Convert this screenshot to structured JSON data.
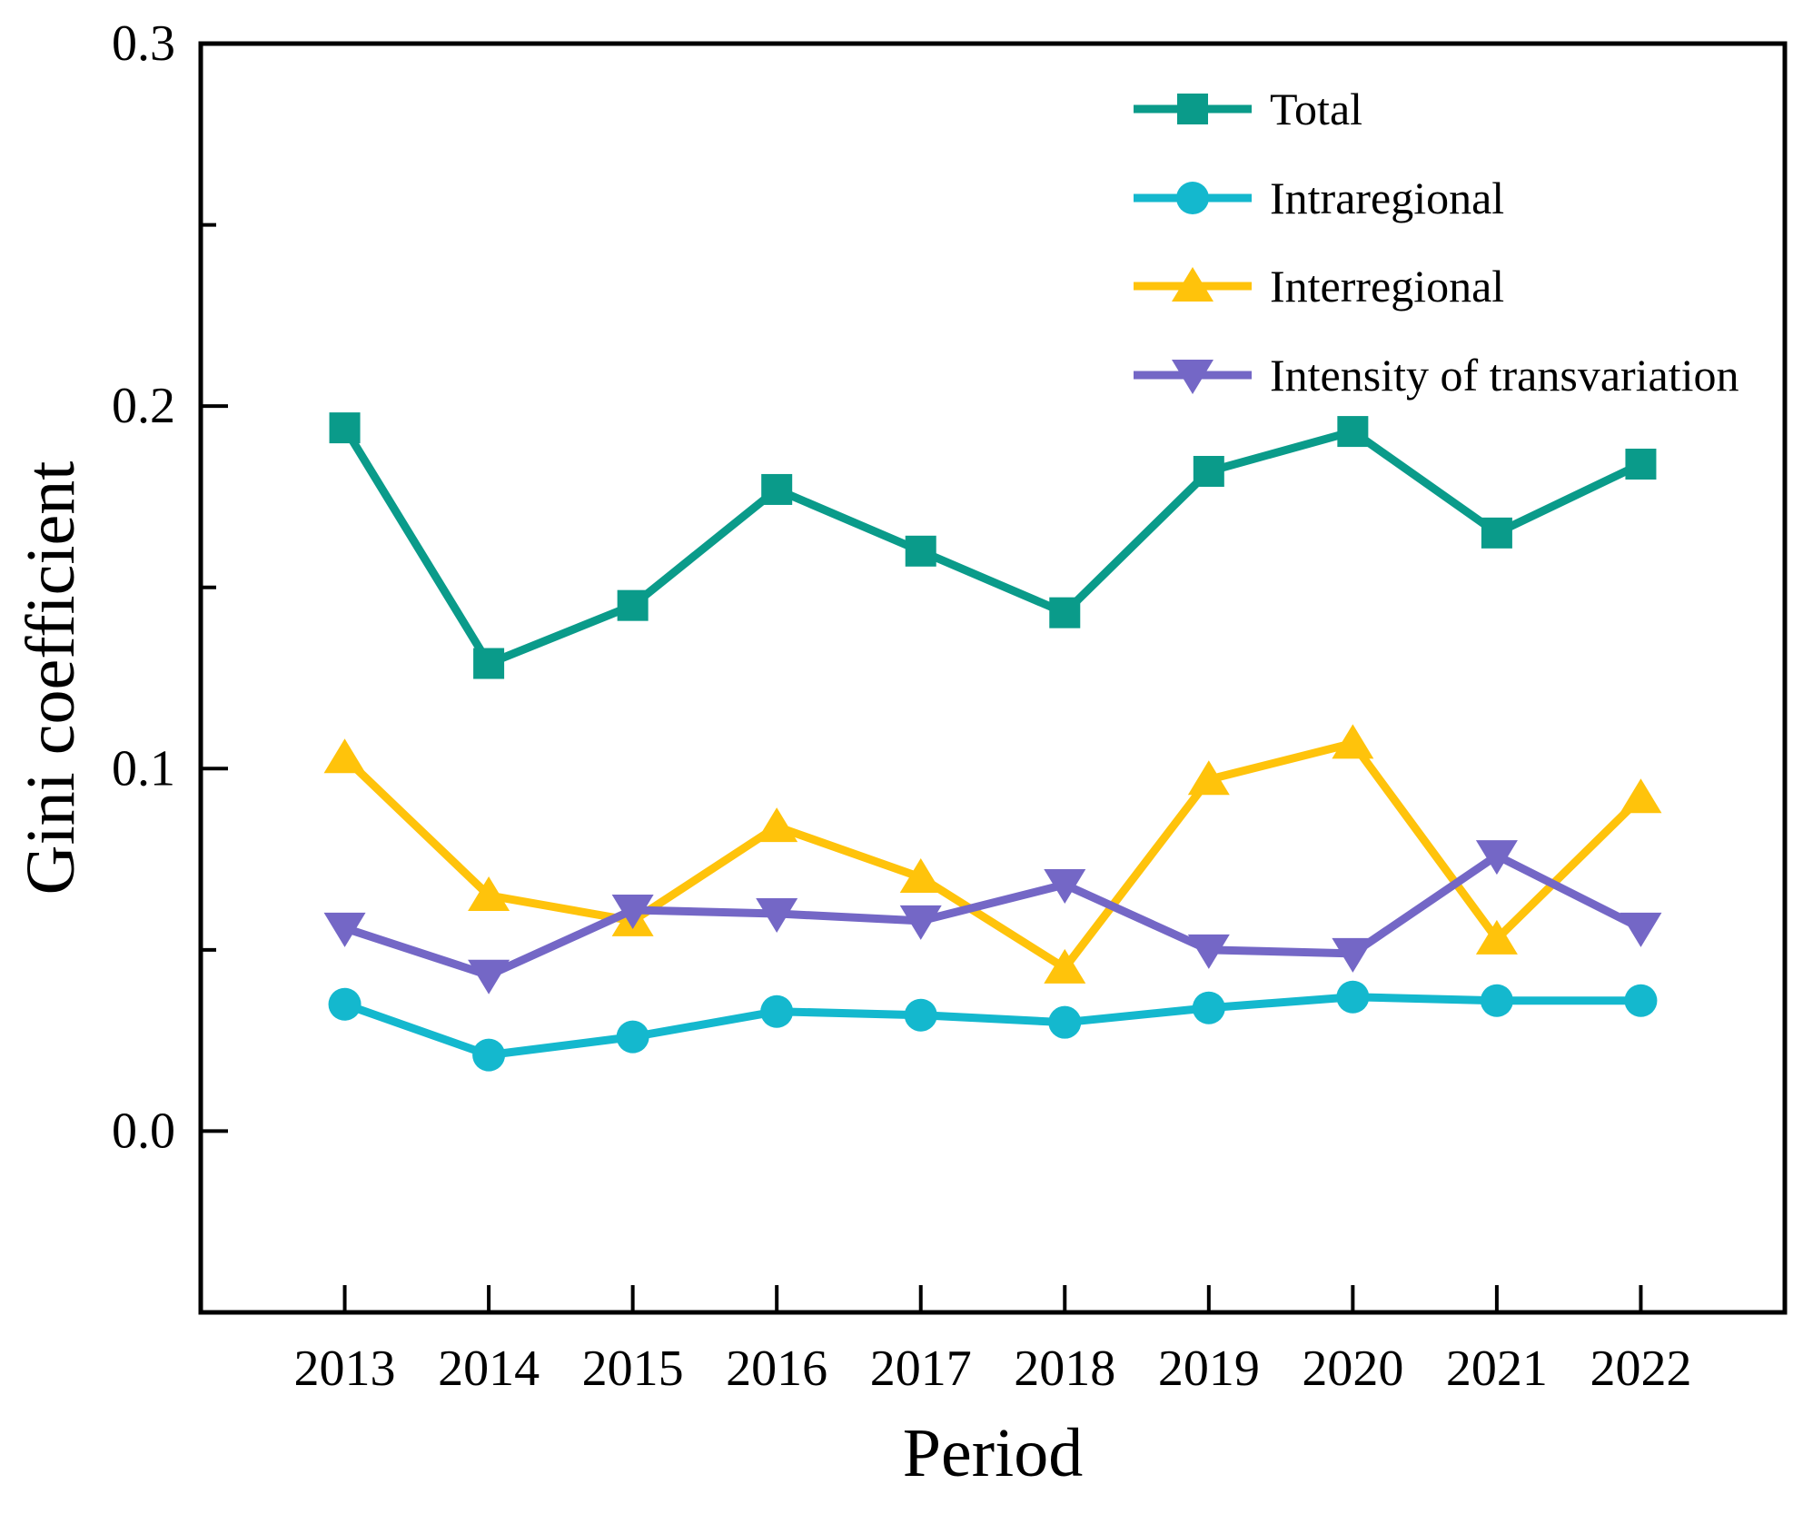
{
  "chart_data": {
    "type": "line",
    "title": "",
    "xlabel": "Period",
    "ylabel": "Gini coefficient",
    "x": [
      2013,
      2014,
      2015,
      2016,
      2017,
      2018,
      2019,
      2020,
      2021,
      2022
    ],
    "series": [
      {
        "name": "Total",
        "color": "#0a9b8a",
        "marker": "square",
        "values": [
          0.194,
          0.129,
          0.145,
          0.177,
          0.16,
          0.143,
          0.182,
          0.193,
          0.165,
          0.184
        ]
      },
      {
        "name": "Intraregional",
        "color": "#14b8ce",
        "marker": "circle",
        "values": [
          0.035,
          0.021,
          0.026,
          0.033,
          0.032,
          0.03,
          0.034,
          0.037,
          0.036,
          0.036
        ]
      },
      {
        "name": "Interregional",
        "color": "#ffc30b",
        "marker": "triangle-up",
        "values": [
          0.103,
          0.065,
          0.058,
          0.084,
          0.07,
          0.045,
          0.097,
          0.107,
          0.053,
          0.092
        ]
      },
      {
        "name": "Intensity of transvariation",
        "color": "#7467c6",
        "marker": "triangle-down",
        "values": [
          0.056,
          0.043,
          0.061,
          0.06,
          0.058,
          0.068,
          0.05,
          0.049,
          0.076,
          0.056
        ]
      }
    ],
    "ylim": [
      -0.05,
      0.3
    ],
    "grid": false,
    "legend_position": "upper right"
  },
  "axes": {
    "x_tick_labels": [
      "2013",
      "2014",
      "2015",
      "2016",
      "2017",
      "2018",
      "2019",
      "2020",
      "2021",
      "2022"
    ],
    "y_major_ticks": [
      0.0,
      0.1,
      0.2,
      0.3
    ],
    "y_tick_labels": [
      "0.0",
      "0.1",
      "0.2",
      "0.3"
    ],
    "y_minor_ticks": [
      0.05,
      0.15,
      0.25
    ],
    "axis_color": "#000000"
  },
  "legend": {
    "items": [
      "Total",
      "Intraregional",
      "Interregional",
      "Intensity of transvariation"
    ]
  }
}
